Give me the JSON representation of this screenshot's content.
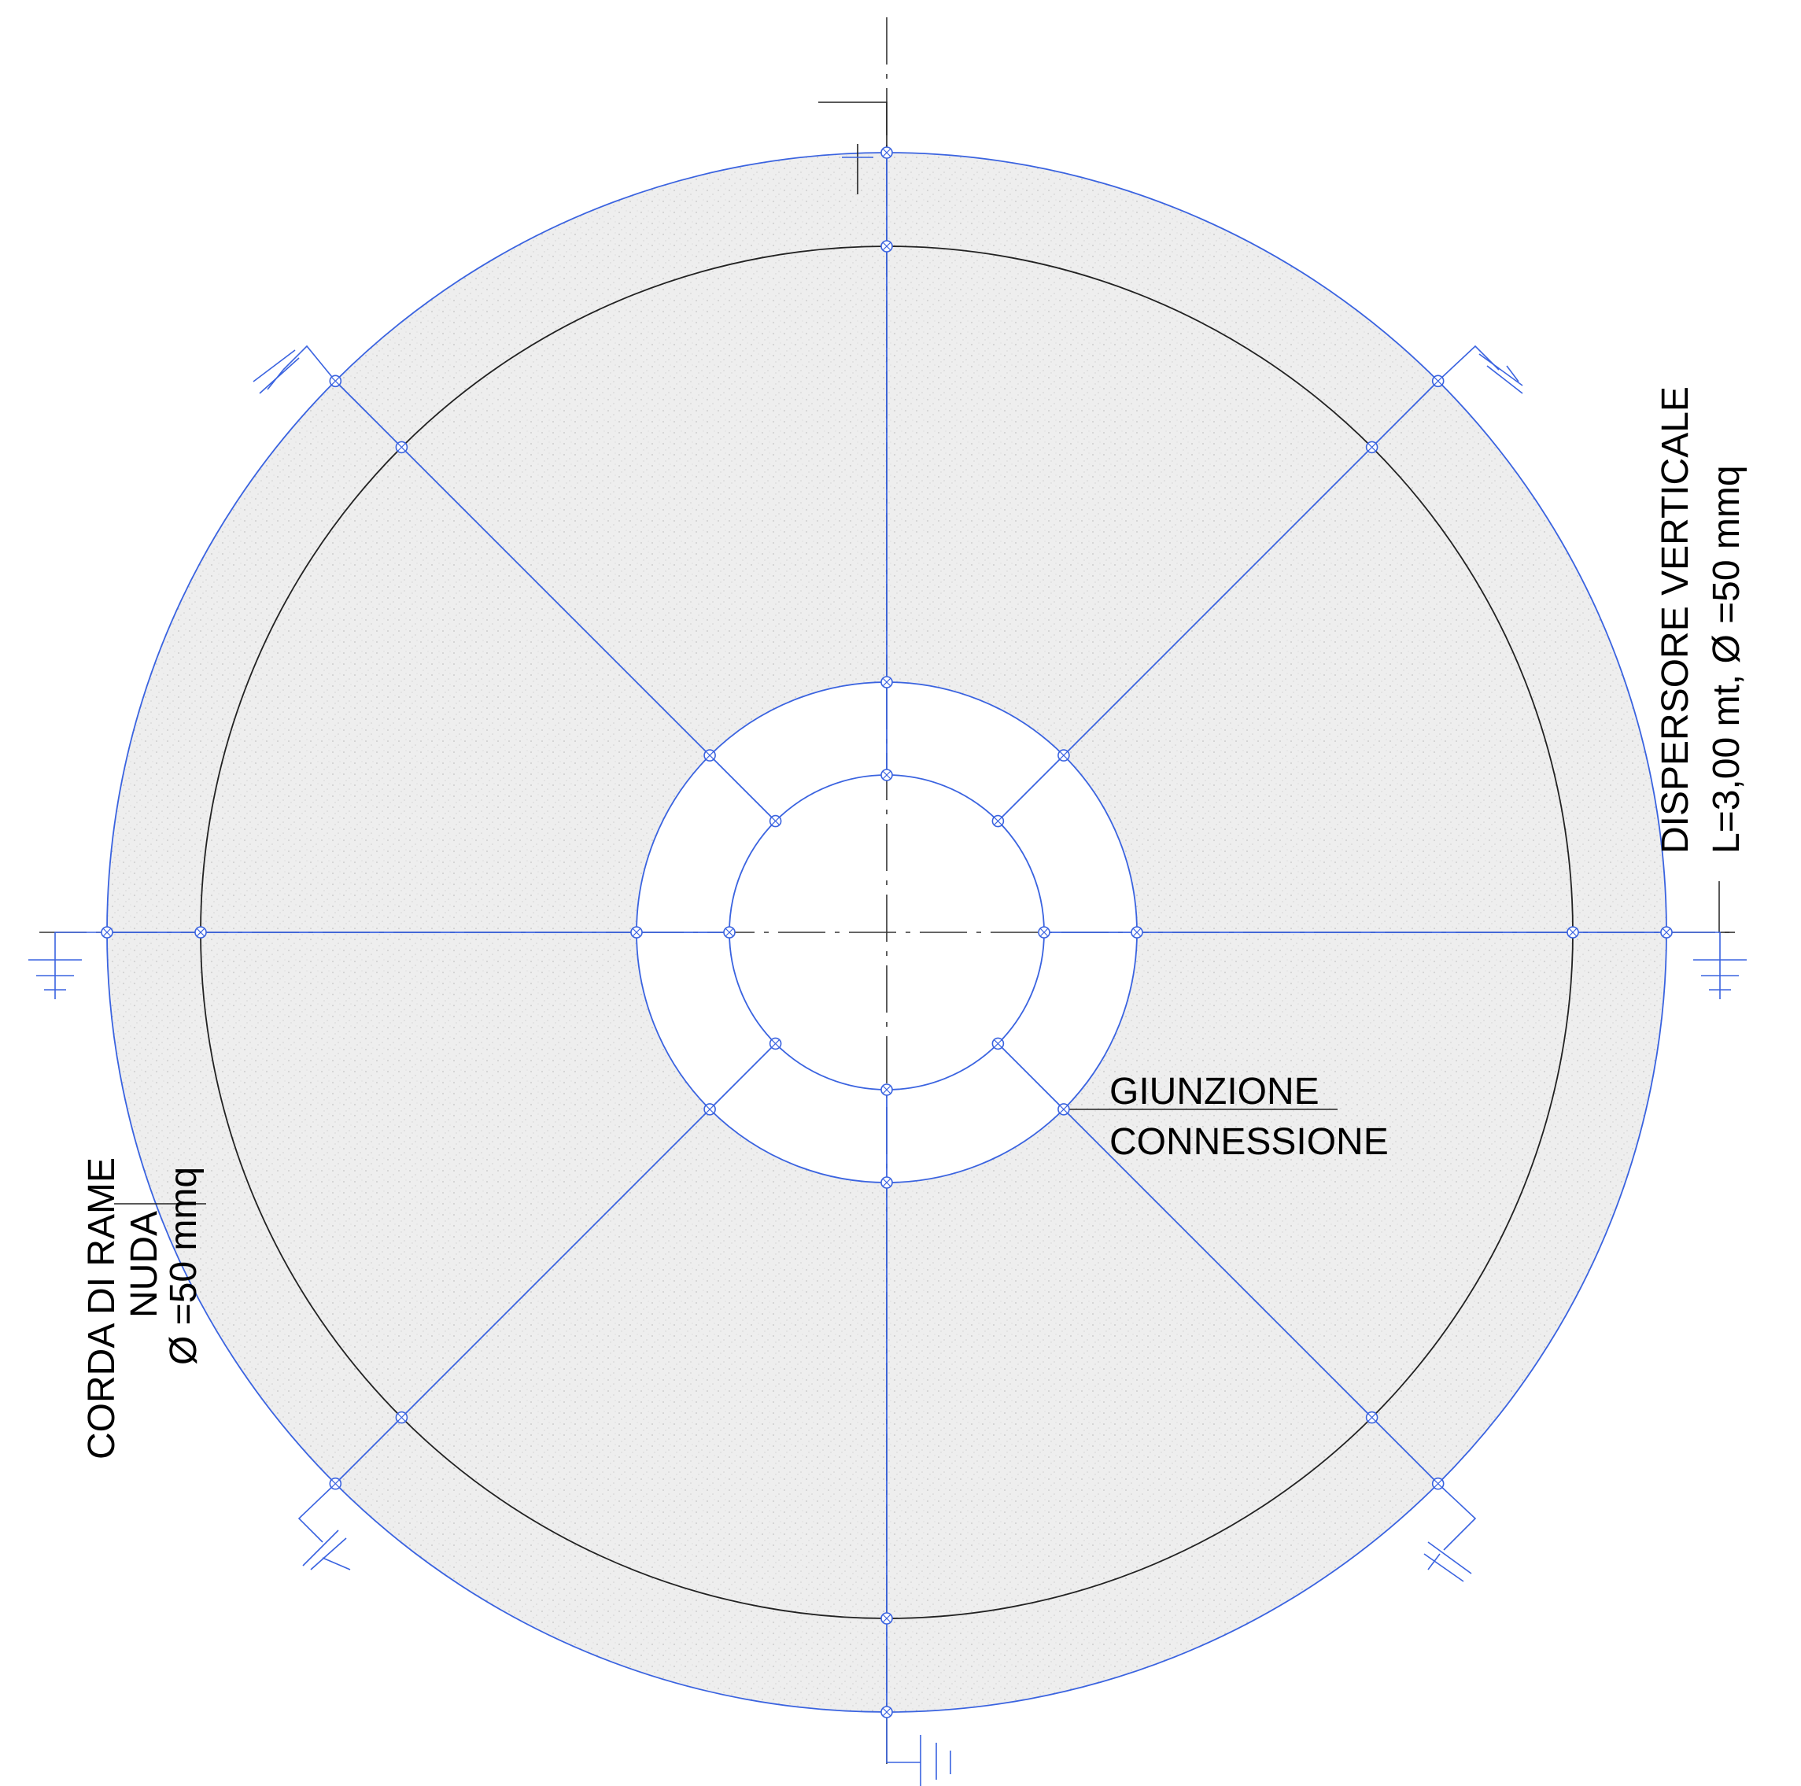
{
  "labels": {
    "dispersore_line1": "DISPERSORE VERTICALE",
    "dispersore_line2": "L=3,00 mt, Ø =50 mmq",
    "giunzione_line1": "GIUNZIONE",
    "giunzione_line2": "CONNESSIONE",
    "corda_line1": "CORDA DI RAME",
    "corda_line2": "NUDA",
    "corda_line3": "Ø =50 mmq"
  },
  "colors": {
    "conductor": "#3a63e0",
    "outline": "#222222",
    "centerline": "#333333",
    "fill": "#eeeeee",
    "text": "#000000"
  },
  "symbols": {
    "earth_electrode": "ground-symbol",
    "junction": "crossed-circle"
  }
}
